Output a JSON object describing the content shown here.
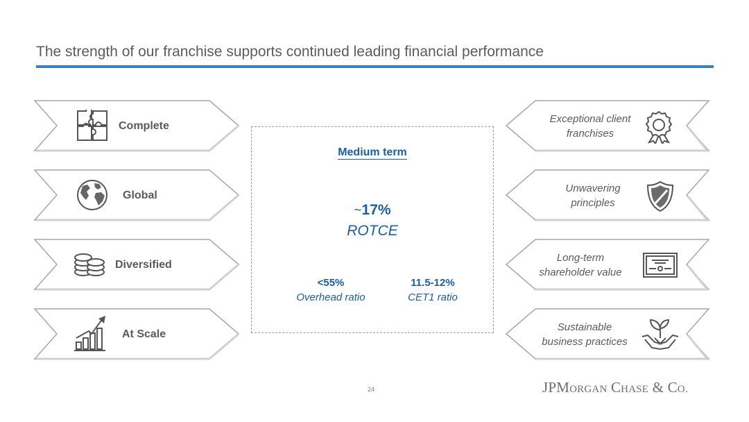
{
  "title": "The strength of our franchise supports continued leading financial performance",
  "left_items": [
    {
      "label": "Complete",
      "icon": "puzzle-icon"
    },
    {
      "label": "Global",
      "icon": "globe-icon"
    },
    {
      "label": "Diversified",
      "icon": "coin-stack-icon"
    },
    {
      "label": "At Scale",
      "icon": "growth-chart-icon"
    }
  ],
  "right_items": [
    {
      "line1": "Exceptional client",
      "line2": "franchises",
      "icon": "award-ribbon-icon"
    },
    {
      "line1": "Unwavering",
      "line2": "principles",
      "icon": "shield-icon"
    },
    {
      "line1": "Long-term",
      "line2": "shareholder value",
      "icon": "certificate-icon"
    },
    {
      "line1": "Sustainable",
      "line2": "business practices",
      "icon": "plant-hands-icon"
    }
  ],
  "center": {
    "heading": "Medium term",
    "main_value_prefix": "~",
    "main_value": "17%",
    "main_label": "ROTCE",
    "metrics": [
      {
        "value": "<55%",
        "label": "Overhead ratio"
      },
      {
        "value": "11.5-12%",
        "label": "CET1 ratio"
      }
    ]
  },
  "footer": {
    "page_number": "24",
    "logo_text": "JPMorgan Chase & Co."
  },
  "colors": {
    "accent_blue": "#1a5ea5",
    "rule_blue": "#3f7fc0",
    "text_gray": "#5a5a5a"
  }
}
